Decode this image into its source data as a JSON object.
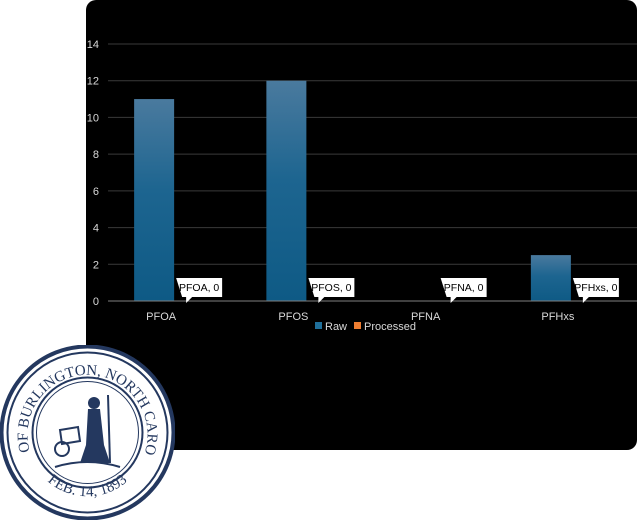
{
  "chart_data": {
    "type": "bar",
    "categories": [
      "PFOA",
      "PFOS",
      "PFNA",
      "PFHxs"
    ],
    "series": [
      {
        "name": "Raw",
        "values": [
          11,
          12,
          0,
          2.5
        ],
        "color": "#1f6f9a"
      },
      {
        "name": "Processed",
        "values": [
          0,
          0,
          0,
          0
        ],
        "color": "#ed7d31"
      }
    ],
    "data_labels": [
      "PFOA, 0",
      "PFOS, 0",
      "PFNA, 0",
      "PFHxs, 0"
    ],
    "ylim": [
      0,
      14
    ],
    "yticks": [
      0,
      2,
      4,
      6,
      8,
      10,
      12,
      14
    ],
    "grid": true,
    "legend_position": "bottom",
    "background": "#000000",
    "gridline_color": "#3a3a3a"
  },
  "seal": {
    "top_text": "CITY OF BURLINGTON, NORTH CAROLINA",
    "bottom_text": "FEB. 14, 1893",
    "color": "#24385f"
  }
}
